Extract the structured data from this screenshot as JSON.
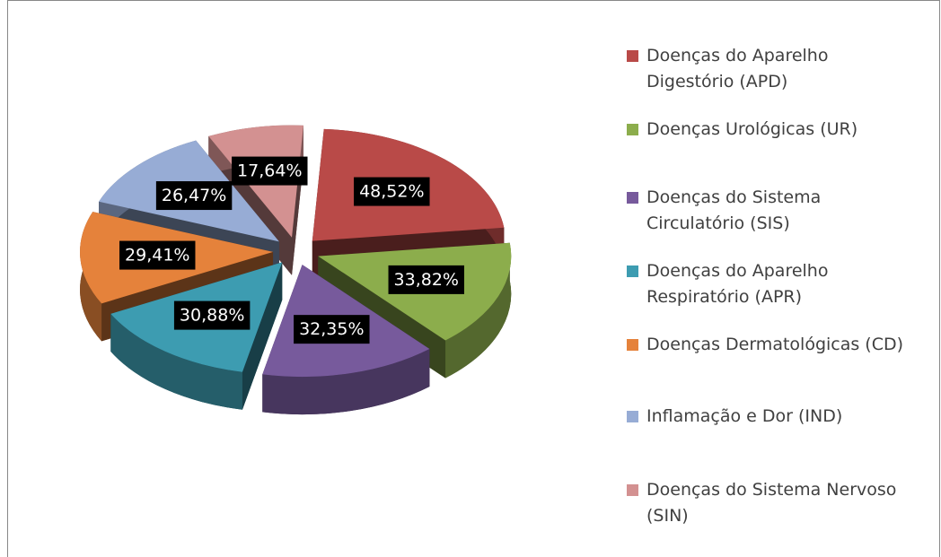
{
  "chart_data": {
    "type": "pie3d",
    "categories": [
      "Doenças do Aparelho Digestório (APD)",
      "Doenças Urológicas (UR)",
      "Doenças do Sistema Circulatório (SIS)",
      "Doenças do Aparelho Respiratório (APR)",
      "Doenças Dermatológicas (CD)",
      "Inflamação e Dor (IND)",
      "Doenças do Sistema Nervoso (SIN)"
    ],
    "values": [
      48.52,
      33.82,
      32.35,
      30.88,
      29.41,
      26.47,
      17.64
    ],
    "value_labels": [
      "48,52%",
      "33,82%",
      "32,35%",
      "30,88%",
      "29,41%",
      "26,47%",
      "17,64%"
    ],
    "colors": [
      "#b94a48",
      "#8cad4c",
      "#775a9c",
      "#3d9cb1",
      "#e5823b",
      "#97acd5",
      "#d39191"
    ],
    "legend": "right"
  }
}
